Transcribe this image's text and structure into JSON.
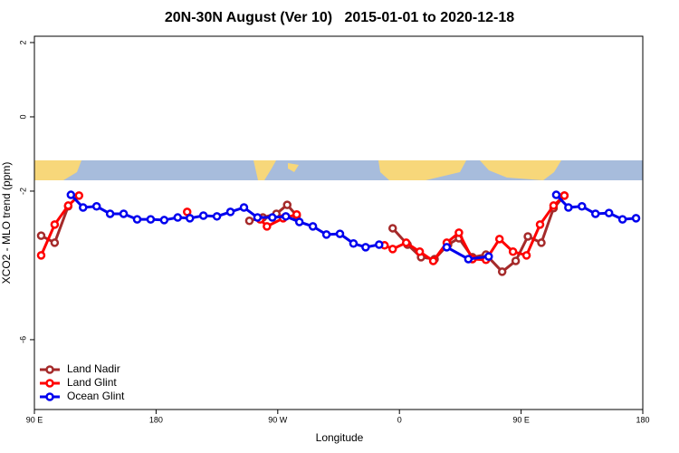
{
  "chart_data": {
    "type": "line",
    "title": "20N-30N August (Ver 10)   2015-01-01 to 2020-12-18",
    "x_label": "Longitude",
    "y_label": "XCO2 - MLO trend (ppm)",
    "xlim": [
      -270,
      180
    ],
    "xticks": [
      {
        "value": -270,
        "label": "90 E"
      },
      {
        "value": -180,
        "label": "180"
      },
      {
        "value": -90,
        "label": "90 W"
      },
      0,
      {
        "value": 90,
        "label": "90 E"
      },
      {
        "value": 180,
        "label": "180"
      }
    ],
    "ylim": [
      -7.88,
      2.17
    ],
    "yticks": [
      -6,
      -2,
      0,
      2
    ],
    "legend": "bottom-left",
    "series": [
      {
        "name": "Land Nadir",
        "color": "#a52a2a",
        "x": [
          -265,
          -255,
          -245,
          null,
          -111,
          -101,
          -91,
          -83,
          -76,
          null,
          -5,
          6,
          16,
          26,
          36,
          44,
          54,
          64,
          76,
          86,
          95,
          105,
          114,
          122
        ],
        "values": [
          -3.2,
          -3.39,
          -2.41,
          null,
          -2.8,
          -2.71,
          -2.61,
          -2.37,
          -2.66,
          null,
          -3.0,
          -3.44,
          -3.78,
          -3.83,
          -3.44,
          -3.27,
          -3.78,
          -3.71,
          -4.17,
          -3.88,
          -3.22,
          -3.39,
          -2.46,
          -2.12
        ]
      },
      {
        "name": "Land Glint",
        "color": "#ff0000",
        "x": [
          -265,
          -255,
          -245,
          -237,
          null,
          -157,
          null,
          -103,
          -98,
          -86,
          -76,
          null,
          -11,
          -5,
          5,
          15,
          25,
          35,
          44,
          54,
          64,
          74,
          84,
          94,
          104,
          114,
          122
        ],
        "values": [
          -3.73,
          -2.9,
          -2.39,
          -2.12,
          null,
          -2.56,
          null,
          -2.76,
          -2.95,
          -2.73,
          -2.63,
          null,
          -3.46,
          -3.56,
          -3.39,
          -3.63,
          -3.88,
          -3.39,
          -3.12,
          -3.83,
          -3.85,
          -3.29,
          -3.63,
          -3.73,
          -2.9,
          -2.39,
          -2.12
        ]
      },
      {
        "name": "Ocean Glint",
        "color": "#0000ee",
        "x": [
          -243,
          -234,
          -224,
          -214,
          -204,
          -194,
          -184,
          -174,
          -164,
          -155,
          -145,
          -135,
          -125,
          -115,
          -105,
          -94,
          -84,
          -74,
          -64,
          -54,
          -44,
          -34,
          -25,
          -15,
          null,
          35,
          51,
          66,
          null,
          116,
          125,
          135,
          145,
          155,
          165,
          175
        ],
        "values": [
          -2.1,
          -2.44,
          -2.41,
          -2.61,
          -2.61,
          -2.76,
          -2.76,
          -2.78,
          -2.71,
          -2.73,
          -2.66,
          -2.68,
          -2.56,
          -2.44,
          -2.71,
          -2.71,
          -2.68,
          -2.83,
          -2.95,
          -3.17,
          -3.15,
          -3.41,
          -3.51,
          -3.44,
          null,
          -3.51,
          -3.83,
          -3.76,
          null,
          -2.1,
          -2.44,
          -2.41,
          -2.61,
          -2.59,
          -2.76,
          -2.73
        ]
      }
    ]
  }
}
